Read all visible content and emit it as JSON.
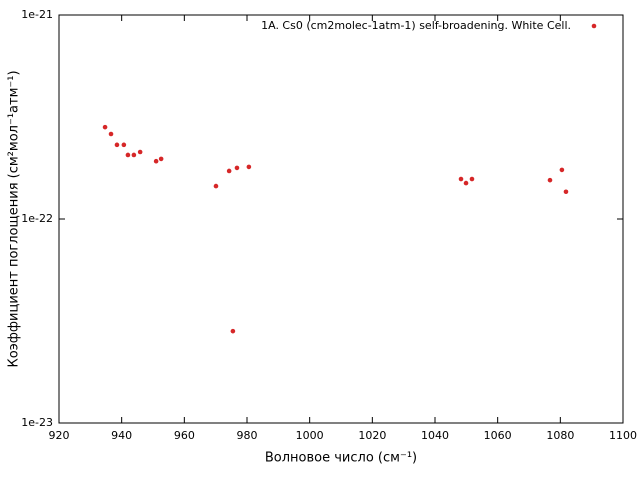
{
  "chart_data": {
    "type": "scatter",
    "xlabel": "Волновое число (см⁻¹)",
    "ylabel": "Коэффициент поглощения (см²мол⁻¹атм⁻¹)",
    "xlim": [
      920,
      1100
    ],
    "xticks": [
      920,
      940,
      960,
      980,
      1000,
      1020,
      1040,
      1060,
      1080,
      1100
    ],
    "ylim": [
      1e-23,
      1e-21
    ],
    "yticks": [
      1e-23,
      1e-22,
      1e-21
    ],
    "ylog": true,
    "grid": false,
    "legend_position": "upper-right",
    "series": [
      {
        "name": "1A. Cs0 (cm2molec-1atm-1)  self-broadening. White Cell.",
        "color": "#d62728",
        "x": [
          934.7,
          936.6,
          938.5,
          940.7,
          942.0,
          943.9,
          945.9,
          951.0,
          952.6,
          970.1,
          974.3,
          976.8,
          980.6,
          975.5,
          1048.3,
          1049.9,
          1051.8,
          1076.7,
          1080.5,
          1081.8
        ],
        "values": [
          2.82e-22,
          2.61e-22,
          2.31e-22,
          2.31e-22,
          2.06e-22,
          2.06e-22,
          2.13e-22,
          1.92e-22,
          1.97e-22,
          1.45e-22,
          1.72e-22,
          1.78e-22,
          1.8e-22,
          2.82e-23,
          1.57e-22,
          1.5e-22,
          1.57e-22,
          1.55e-22,
          1.74e-22,
          1.36e-22
        ]
      }
    ]
  }
}
